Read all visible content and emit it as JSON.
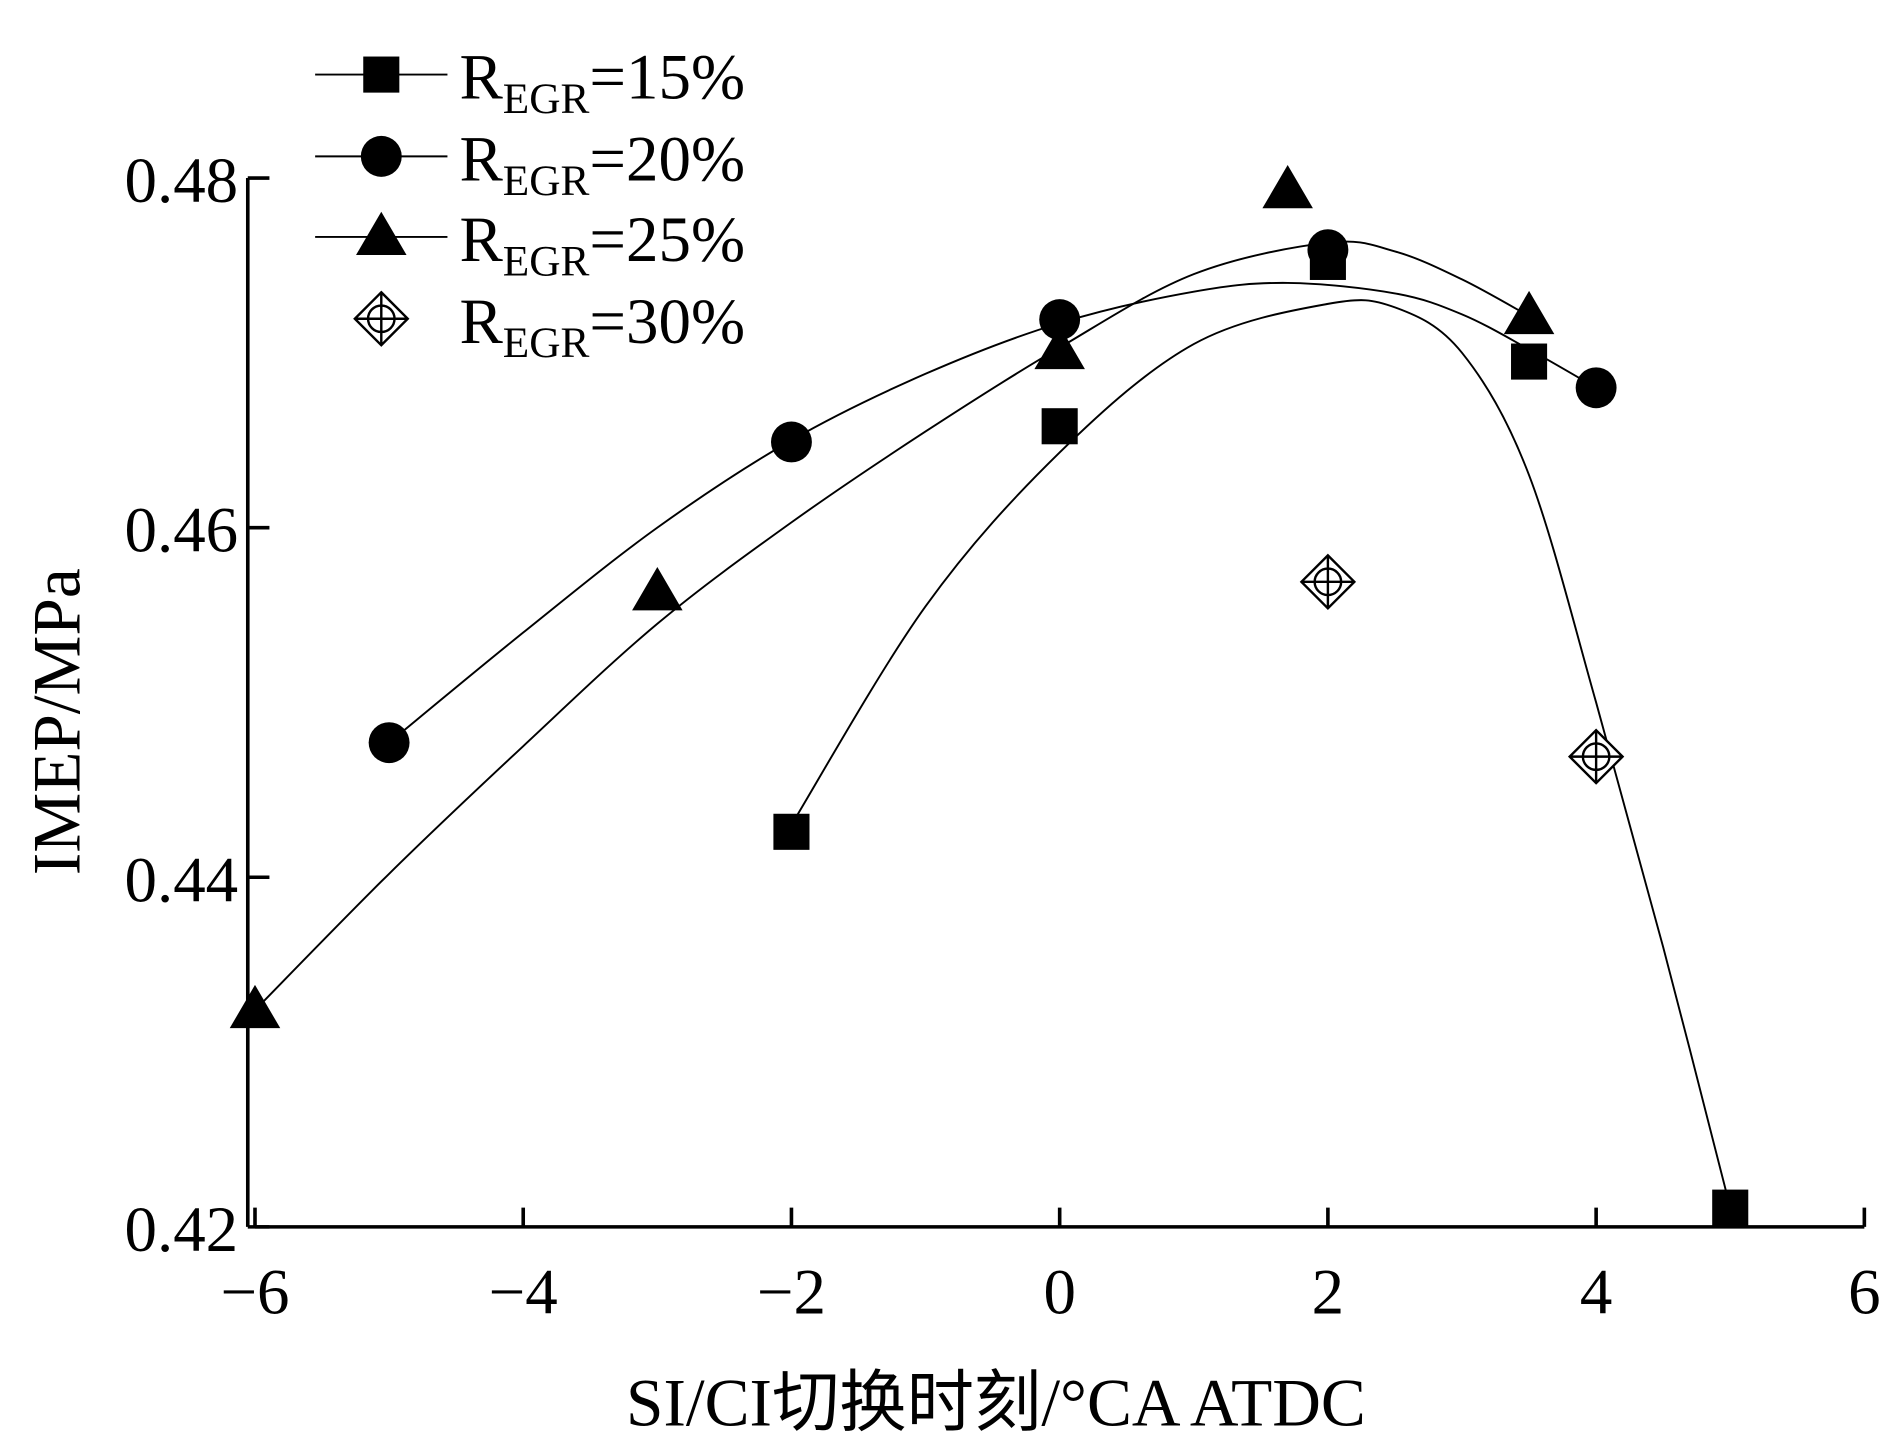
{
  "chart_data": {
    "type": "scatter",
    "title": "",
    "xlabel": "SI/CI切换时刻/°CA ATDC",
    "ylabel": "IMEP/MPa",
    "xlim": [
      -6,
      6
    ],
    "ylim": [
      0.42,
      0.48
    ],
    "xticks": [
      -6,
      -4,
      -2,
      0,
      2,
      4,
      6
    ],
    "xtick_labels": [
      "−6",
      "−4",
      "−2",
      "0",
      "2",
      "4",
      "6"
    ],
    "yticks": [
      0.42,
      0.44,
      0.46,
      0.48
    ],
    "ytick_labels": [
      "0.42",
      "0.44",
      "0.46",
      "0.48"
    ],
    "grid": false,
    "legend_position": "top-left",
    "series": [
      {
        "name": "R_EGR=15%",
        "label_main": "R",
        "label_sub": "EGR",
        "label_tail": "=15%",
        "marker": "square",
        "x": [
          -2,
          0,
          2,
          3.5,
          5
        ],
        "y": [
          0.4426,
          0.4658,
          0.4752,
          0.4695,
          0.4211
        ],
        "fit_x": [
          -2,
          -1,
          0,
          1,
          2,
          2.5,
          3,
          3.5,
          4,
          4.5,
          5
        ],
        "fit_y": [
          0.443,
          0.4555,
          0.4643,
          0.4705,
          0.4728,
          0.4726,
          0.47,
          0.463,
          0.45,
          0.436,
          0.4211
        ]
      },
      {
        "name": "R_EGR=20%",
        "label_main": "R",
        "label_sub": "EGR",
        "label_tail": "=20%",
        "marker": "circle",
        "x": [
          -5,
          -2,
          0,
          2,
          4
        ],
        "y": [
          0.4477,
          0.4649,
          0.4719,
          0.4759,
          0.468
        ],
        "fit_x": [
          -5,
          -4,
          -3,
          -2,
          -1,
          0,
          1,
          1.7,
          2.5,
          3,
          3.5,
          4
        ],
        "fit_y": [
          0.4477,
          0.454,
          0.46,
          0.465,
          0.4688,
          0.4717,
          0.4735,
          0.474,
          0.4734,
          0.4722,
          0.4702,
          0.468
        ]
      },
      {
        "name": "R_EGR=25%",
        "label_main": "R",
        "label_sub": "EGR",
        "label_tail": "=25%",
        "marker": "triangle",
        "x": [
          -6,
          -3,
          0,
          1.7,
          3.5
        ],
        "y": [
          0.4324,
          0.4563,
          0.4701,
          0.4793,
          0.4721
        ],
        "fit_x": [
          -6,
          -5,
          -4,
          -3,
          -2,
          -1,
          0,
          1,
          2,
          2.5,
          3,
          3.5
        ],
        "fit_y": [
          0.4324,
          0.4402,
          0.4475,
          0.4545,
          0.4603,
          0.4655,
          0.4703,
          0.4745,
          0.4763,
          0.4758,
          0.4742,
          0.4721
        ]
      },
      {
        "name": "R_EGR=30%",
        "label_main": "R",
        "label_sub": "EGR",
        "label_tail": "=30%",
        "marker": "diamond-cross",
        "x": [
          2,
          4
        ],
        "y": [
          0.4569,
          0.4469
        ],
        "fit_x": [],
        "fit_y": []
      }
    ]
  }
}
